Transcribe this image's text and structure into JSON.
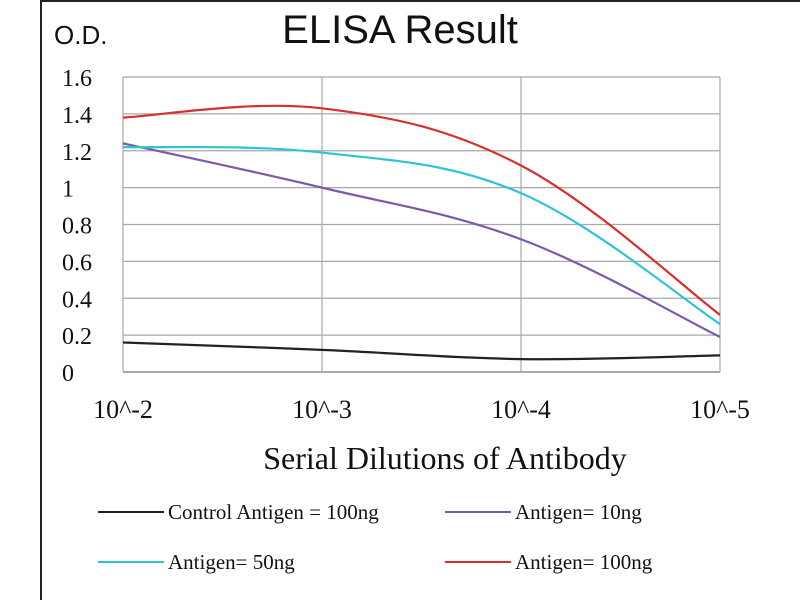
{
  "chart_data": {
    "type": "line",
    "title": "ELISA Result",
    "ylabel": "O.D.",
    "xlabel": "Serial Dilutions of Antibody",
    "categories": [
      "10^-2",
      "10^-3",
      "10^-4",
      "10^-5"
    ],
    "ylim": [
      0,
      1.6
    ],
    "yticks": [
      "0",
      "0.2",
      "0.4",
      "0.6",
      "0.8",
      "1",
      "1.2",
      "1.4",
      "1.6"
    ],
    "grid": true,
    "legend_position": "bottom",
    "series": [
      {
        "name": "Control Antigen = 100ng",
        "color": "#222222",
        "values": [
          0.16,
          0.12,
          0.07,
          0.09
        ]
      },
      {
        "name": "Antigen= 10ng",
        "color": "#7b5aa6",
        "values": [
          1.24,
          1.0,
          0.72,
          0.19
        ]
      },
      {
        "name": "Antigen= 50ng",
        "color": "#2ec4d6",
        "values": [
          1.22,
          1.19,
          0.97,
          0.26
        ]
      },
      {
        "name": "Antigen= 100ng",
        "color": "#d8302e",
        "values": [
          1.38,
          1.43,
          1.12,
          0.31
        ]
      }
    ]
  }
}
